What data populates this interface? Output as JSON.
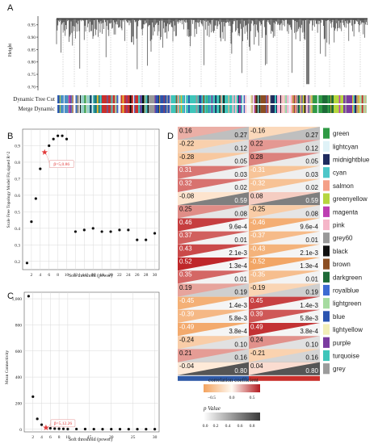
{
  "panels": {
    "A": "A",
    "B": "B",
    "C": "C",
    "D": "D"
  },
  "dendro": {
    "ylabel": "Height",
    "yticks": [
      "0.95",
      "0.90",
      "0.85",
      "0.80",
      "0.75",
      "0.70"
    ],
    "row_labels": [
      "Dynamic Tree Cut",
      "Merge Dynamic"
    ]
  },
  "colors": {
    "green": "#2f9a45",
    "lightcyan": "#dff2f7",
    "midnightblue": "#1e2b5e",
    "cyan": "#4dc7c9",
    "salmon": "#f4a088",
    "greenyellow": "#b6d63f",
    "magenta": "#bd3fb2",
    "pink": "#f5b6c8",
    "grey60": "#999999",
    "black": "#111111",
    "brown": "#8c4f23",
    "darkgreen": "#1e6b38",
    "royalblue": "#3d6bd2",
    "lightgreen": "#a6dba0",
    "blue": "#2b54b0",
    "lightyellow": "#f2eeb8",
    "purple": "#7b3ca0",
    "turquoise": "#3fc5ba",
    "grey": "#9c9c9c",
    "extra_red": "#c9302c",
    "extra_gold": "#e7b92c",
    "extra_teal": "#1d7b84",
    "extra_white": "#f5f5f5"
  },
  "chart_data": [
    {
      "type": "scatter",
      "panel": "B",
      "xlabel": "Soft threshold (power)",
      "ylabel": "Scale Free Topology Model Fit,signed R^2",
      "x": [
        1,
        2,
        3,
        4,
        5,
        6,
        7,
        8,
        9,
        10,
        12,
        14,
        16,
        18,
        20,
        22,
        24,
        26,
        28,
        30
      ],
      "y": [
        0.19,
        0.44,
        0.58,
        0.76,
        0.86,
        0.9,
        0.94,
        0.96,
        0.96,
        0.94,
        0.38,
        0.39,
        0.4,
        0.38,
        0.38,
        0.39,
        0.39,
        0.33,
        0.33,
        0.37
      ],
      "xticks": [
        "2",
        "4",
        "6",
        "8",
        "10",
        "12",
        "14",
        "16",
        "18",
        "20",
        "22",
        "24",
        "26",
        "28",
        "30"
      ],
      "yticks": [
        "0.2",
        "0.3",
        "0.4",
        "0.5",
        "0.6",
        "0.7",
        "0.8",
        "0.9"
      ],
      "xlim": [
        0,
        31
      ],
      "ylim": [
        0.15,
        1.0
      ],
      "highlight": {
        "x": 5,
        "y": 0.86,
        "label": "β=5,0.86"
      }
    },
    {
      "type": "scatter",
      "panel": "C",
      "xlabel": "Soft threshold (power)",
      "ylabel": "Mean Connectivity",
      "x": [
        1,
        2,
        3,
        4,
        5,
        6,
        7,
        8,
        9,
        10,
        12,
        14,
        16,
        18,
        20,
        22,
        24,
        26,
        28,
        30
      ],
      "y": [
        1020,
        250,
        80,
        35,
        12.26,
        8,
        5,
        4,
        3,
        2,
        2,
        1.5,
        1.2,
        1,
        1,
        1,
        1,
        1,
        1,
        1
      ],
      "xticks": [
        "2",
        "4",
        "6",
        "8",
        "10",
        "15",
        "20",
        "25",
        "30"
      ],
      "yticks": [
        "0",
        "200",
        "400",
        "600",
        "800",
        "1,000"
      ],
      "xlim": [
        0,
        31
      ],
      "ylim": [
        -20,
        1050
      ],
      "highlight": {
        "x": 5,
        "y": 12.26,
        "label": "β=5,12.26"
      }
    },
    {
      "type": "heatmap",
      "panel": "D",
      "modules": [
        "green",
        "lightcyan",
        "midnightblue",
        "cyan",
        "salmon",
        "greenyellow",
        "magenta",
        "pink",
        "grey60",
        "black",
        "brown",
        "darkgreen",
        "royalblue",
        "lightgreen",
        "blue",
        "lightyellow",
        "purple",
        "turquoise",
        "grey"
      ],
      "col1_r": [
        "0.16",
        "-0.22",
        "-0.28",
        "0.31",
        "0.32",
        "-0.08",
        "0.25",
        "0.46",
        "0.37",
        "0.43",
        "0.52",
        "0.35",
        "0.19",
        "-0.45",
        "-0.39",
        "-0.49",
        "-0.24",
        "0.21",
        "-0.04"
      ],
      "col1_p": [
        "0.27",
        "0.12",
        "0.05",
        "0.03",
        "0.02",
        "0.59",
        "0.08",
        "9.6e-4",
        "0.01",
        "2.1e-3",
        "1.3e-4",
        "0.01",
        "0.19",
        "1.4e-3",
        "5.8e-3",
        "3.8e-4",
        "0.10",
        "0.16",
        "0.80"
      ],
      "col2_r": [
        "-0.16",
        "0.22",
        "0.28",
        "-0.31",
        "-0.32",
        "0.08",
        "-0.25",
        "-0.46",
        "-0.37",
        "-0.43",
        "-0.52",
        "-0.35",
        "-0.19",
        "0.45",
        "0.39",
        "0.49",
        "0.24",
        "-0.21",
        "0.04"
      ],
      "col2_p": [
        "0.27",
        "0.12",
        "0.05",
        "0.03",
        "0.02",
        "0.59",
        "0.08",
        "9.6e-4",
        "0.01",
        "2.1e-3",
        "1.3e-4",
        "0.01",
        "0.19",
        "1.4e-3",
        "5.8e-3",
        "3.8e-4",
        "0.10",
        "0.16",
        "0.80"
      ],
      "legend_r_title": "correlation coefficient",
      "legend_r_ticks": [
        "−0.5",
        "0.0",
        "0.5"
      ],
      "legend_p_title": "p Value",
      "legend_p_ticks": [
        "0.0",
        "0.2",
        "0.4",
        "0.6",
        "0.8"
      ],
      "trait_colors": [
        "#2f5aa7",
        "#c9302c"
      ]
    }
  ]
}
